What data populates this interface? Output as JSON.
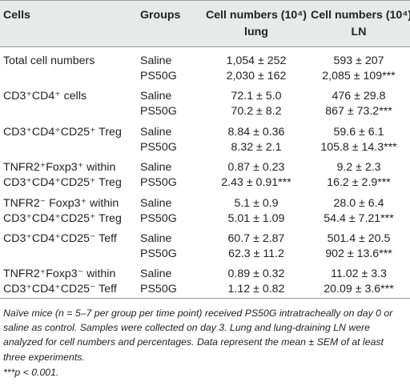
{
  "header": {
    "col1": "Cells",
    "col2": "Groups",
    "col3_line1": "Cell numbers (10⁴)",
    "col3_line2": "lung",
    "col4_line1": "Cell numbers (10⁴)",
    "col4_line2": "LN"
  },
  "rows": [
    {
      "cell_lines": [
        "Total cell numbers"
      ],
      "groups": [
        "Saline",
        "PS50G"
      ],
      "lung": [
        "1,054 ± 252",
        "2,030 ± 162"
      ],
      "ln": [
        "593 ± 207",
        "2,085 ± 109***"
      ]
    },
    {
      "cell_lines": [
        "CD3⁺CD4⁺ cells"
      ],
      "groups": [
        "Saline",
        "PS50G"
      ],
      "lung": [
        "72.1 ± 5.0",
        "70.2 ± 8.2"
      ],
      "ln": [
        "476 ± 29.8",
        "867 ± 73.2***"
      ]
    },
    {
      "cell_lines": [
        "CD3⁺CD4⁺CD25⁺ Treg"
      ],
      "groups": [
        "Saline",
        "PS50G"
      ],
      "lung": [
        "8.84 ± 0.36",
        "8.32 ± 2.1"
      ],
      "ln": [
        "59.6 ± 6.1",
        "105.8 ± 14.3***"
      ]
    },
    {
      "cell_lines": [
        "TNFR2⁺Foxp3⁺ within",
        "CD3⁺CD4⁺CD25⁺ Treg"
      ],
      "groups": [
        "Saline",
        "PS50G"
      ],
      "lung": [
        "0.87 ± 0.23",
        "2.43 ± 0.91***"
      ],
      "ln": [
        "9.2 ± 2.3",
        "16.2 ± 2.9***"
      ]
    },
    {
      "cell_lines": [
        "TNFR2⁻ Foxp3⁺ within",
        "CD3⁺CD4⁺CD25⁺ Treg"
      ],
      "groups": [
        "Saline",
        "PS50G"
      ],
      "lung": [
        "5.1 ± 0.9",
        "5.01 ± 1.09"
      ],
      "ln": [
        "28.0 ± 6.4",
        "54.4 ± 7.21***"
      ]
    },
    {
      "cell_lines": [
        "CD3⁺CD4⁺CD25⁻ Teff"
      ],
      "groups": [
        "Saline",
        "PS50G"
      ],
      "lung": [
        "60.7 ± 2.87",
        "62.3 ± 11.2"
      ],
      "ln": [
        "501.4 ± 20.5",
        "902 ± 13.6***"
      ]
    },
    {
      "cell_lines": [
        "TNFR2⁺Foxp3⁻ within",
        "CD3⁺CD4⁺CD25⁻ Teff"
      ],
      "groups": [
        "Saline",
        "PS50G"
      ],
      "lung": [
        "0.89 ± 0.32",
        "1.12 ± 0.82"
      ],
      "ln": [
        "11.02 ± 3.3",
        "20.09 ± 3.6***"
      ]
    }
  ],
  "footnote": "Naïve mice (n = 5–7 per group per time point) received PS50G intratracheally on day 0 or saline as control. Samples were collected on day 3. Lung and lung-draining LN were analyzed for cell numbers and percentages. Data represent the mean ± SEM of at least three experiments.",
  "significance_note": "***p < 0.001."
}
